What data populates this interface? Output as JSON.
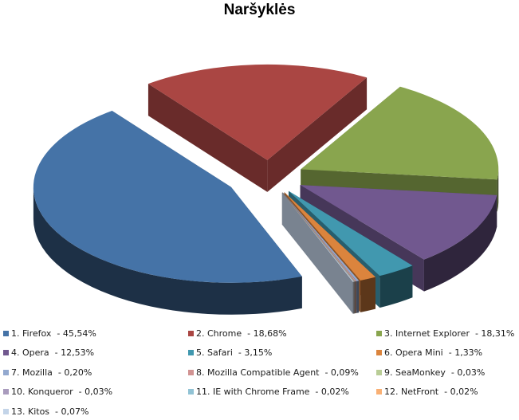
{
  "chart_data": {
    "type": "pie",
    "title": "Naršyklės",
    "slices": [
      {
        "label": "1. Firefox  - 45,54%",
        "value": 45.54,
        "color": "#4573a7"
      },
      {
        "label": "2. Chrome  - 18,68%",
        "value": 18.68,
        "color": "#aa4643"
      },
      {
        "label": "3. Internet Explorer  - 18,31%",
        "value": 18.31,
        "color": "#89a54e"
      },
      {
        "label": "4. Opera  - 12,53%",
        "value": 12.53,
        "color": "#71588f"
      },
      {
        "label": "5. Safari  - 3,15%",
        "value": 3.15,
        "color": "#4198af"
      },
      {
        "label": "6. Opera Mini  - 1,33%",
        "value": 1.33,
        "color": "#db843d"
      },
      {
        "label": "7. Mozilla  - 0,20%",
        "value": 0.2,
        "color": "#93a9cf"
      },
      {
        "label": "8. Mozilla Compatible Agent  - 0,09%",
        "value": 0.09,
        "color": "#d19392"
      },
      {
        "label": "9. SeaMonkey  - 0,03%",
        "value": 0.03,
        "color": "#b9cd96"
      },
      {
        "label": "10. Konqueror  - 0,03%",
        "value": 0.03,
        "color": "#a99bbd"
      },
      {
        "label": "11. IE with Chrome Frame  - 0,02%",
        "value": 0.02,
        "color": "#91c3d5"
      },
      {
        "label": "12. NetFront  - 0,02%",
        "value": 0.02,
        "color": "#f9b074"
      },
      {
        "label": "13. Kitos  - 0,07%",
        "value": 0.07,
        "color": "#c3d4e8"
      }
    ],
    "exploded": true,
    "style": "3d",
    "legend": "bottom"
  }
}
